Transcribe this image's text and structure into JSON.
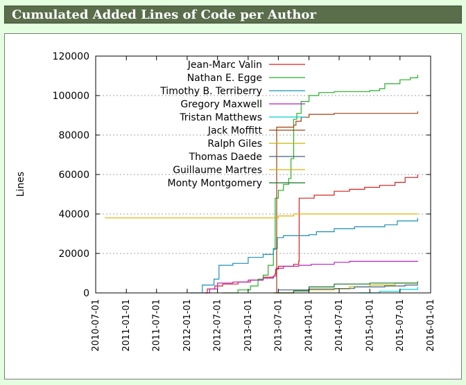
{
  "header": {
    "title": "Cumulated Added Lines of Code per Author"
  },
  "chart_data": {
    "type": "line",
    "title": "",
    "xlabel": "",
    "ylabel": "Lines",
    "xlim": [
      "2010-07-01",
      "2016-01-01"
    ],
    "ylim": [
      0,
      120000
    ],
    "xticks": [
      "2010-07-01",
      "2011-01-01",
      "2011-07-01",
      "2012-01-01",
      "2012-07-01",
      "2013-01-01",
      "2013-07-01",
      "2014-01-01",
      "2014-07-01",
      "2015-01-01",
      "2015-07-01",
      "2016-01-01"
    ],
    "yticks": [
      "0",
      "20000",
      "40000",
      "60000",
      "80000",
      "100000",
      "120000"
    ],
    "grid": true,
    "legend_position": "top-left",
    "series": [
      {
        "name": "Jean-Marc Valin",
        "color": "#d62020",
        "points": [
          [
            "2012-04-10",
            0
          ],
          [
            "2012-05-01",
            2000
          ],
          [
            "2012-06-15",
            3500
          ],
          [
            "2012-08-01",
            4500
          ],
          [
            "2012-11-01",
            5500
          ],
          [
            "2013-01-15",
            6500
          ],
          [
            "2013-04-01",
            8000
          ],
          [
            "2013-06-01",
            8500
          ],
          [
            "2013-06-10",
            9500
          ],
          [
            "2013-06-15",
            12000
          ],
          [
            "2013-07-01",
            13500
          ],
          [
            "2013-10-01",
            14500
          ],
          [
            "2013-10-31",
            16000
          ],
          [
            "2013-11-03",
            48000
          ],
          [
            "2014-02-01",
            49500
          ],
          [
            "2014-06-01",
            51500
          ],
          [
            "2014-09-01",
            52500
          ],
          [
            "2014-12-01",
            53500
          ],
          [
            "2015-03-01",
            54500
          ],
          [
            "2015-06-01",
            56000
          ],
          [
            "2015-08-01",
            58500
          ],
          [
            "2015-10-15",
            60000
          ]
        ]
      },
      {
        "name": "Nathan E. Egge",
        "color": "#22b022",
        "points": [
          [
            "2012-08-01",
            0
          ],
          [
            "2012-11-01",
            1500
          ],
          [
            "2013-01-15",
            3500
          ],
          [
            "2013-03-01",
            7000
          ],
          [
            "2013-04-01",
            9000
          ],
          [
            "2013-05-01",
            14000
          ],
          [
            "2013-06-01",
            22000
          ],
          [
            "2013-06-12",
            48000
          ],
          [
            "2013-07-01",
            52000
          ],
          [
            "2013-08-01",
            55000
          ],
          [
            "2013-09-01",
            58000
          ],
          [
            "2013-09-15",
            68000
          ],
          [
            "2013-10-01",
            88000
          ],
          [
            "2013-10-20",
            91000
          ],
          [
            "2013-11-15",
            97000
          ],
          [
            "2014-01-01",
            100000
          ],
          [
            "2014-03-01",
            101500
          ],
          [
            "2014-06-01",
            102000
          ],
          [
            "2015-01-01",
            102500
          ],
          [
            "2015-03-01",
            103500
          ],
          [
            "2015-04-01",
            106000
          ],
          [
            "2015-07-01",
            108000
          ],
          [
            "2015-09-01",
            109000
          ],
          [
            "2015-10-15",
            110500
          ]
        ]
      },
      {
        "name": "Timothy B. Terriberry",
        "color": "#1a8fb8",
        "points": [
          [
            "2012-01-15",
            0
          ],
          [
            "2012-04-01",
            4000
          ],
          [
            "2012-06-10",
            7000
          ],
          [
            "2012-07-10",
            14000
          ],
          [
            "2012-10-01",
            15000
          ],
          [
            "2013-01-01",
            18000
          ],
          [
            "2013-04-01",
            19500
          ],
          [
            "2013-06-01",
            22500
          ],
          [
            "2013-06-25",
            28000
          ],
          [
            "2013-08-01",
            29000
          ],
          [
            "2014-01-01",
            29500
          ],
          [
            "2014-02-15",
            31000
          ],
          [
            "2014-06-01",
            32500
          ],
          [
            "2014-10-01",
            33500
          ],
          [
            "2015-04-01",
            34500
          ],
          [
            "2015-06-15",
            36500
          ],
          [
            "2015-10-15",
            38000
          ]
        ]
      },
      {
        "name": "Gregory Maxwell",
        "color": "#b020c0",
        "points": [
          [
            "2012-04-15",
            0
          ],
          [
            "2012-05-15",
            2000
          ],
          [
            "2012-07-01",
            5000
          ],
          [
            "2012-10-01",
            5500
          ],
          [
            "2013-01-01",
            6500
          ],
          [
            "2013-04-01",
            7500
          ],
          [
            "2013-06-01",
            8500
          ],
          [
            "2013-06-20",
            12500
          ],
          [
            "2013-08-01",
            13500
          ],
          [
            "2013-11-01",
            14000
          ],
          [
            "2014-01-15",
            14500
          ],
          [
            "2014-06-01",
            15500
          ],
          [
            "2014-09-01",
            16000
          ],
          [
            "2015-10-15",
            16200
          ]
        ]
      },
      {
        "name": "Tristan Matthews",
        "color": "#00d0d0",
        "points": [
          [
            "2014-11-01",
            0
          ],
          [
            "2015-03-01",
            800
          ],
          [
            "2015-07-01",
            1800
          ],
          [
            "2015-10-15",
            3000
          ]
        ]
      },
      {
        "name": "Jack Moffitt",
        "color": "#a04010",
        "points": [
          [
            "2013-06-20",
            0
          ],
          [
            "2013-06-21",
            84000
          ],
          [
            "2013-10-01",
            85000
          ],
          [
            "2013-10-15",
            87000
          ],
          [
            "2013-11-15",
            89000
          ],
          [
            "2014-01-01",
            90500
          ],
          [
            "2014-06-01",
            91000
          ],
          [
            "2015-10-15",
            92000
          ]
        ]
      },
      {
        "name": "Ralph Giles",
        "color": "#c8b400",
        "points": [
          [
            "2013-07-01",
            0
          ],
          [
            "2013-10-01",
            1000
          ],
          [
            "2014-01-01",
            1500
          ],
          [
            "2014-06-01",
            2000
          ],
          [
            "2014-09-01",
            3000
          ],
          [
            "2015-01-01",
            4000
          ],
          [
            "2015-06-01",
            5000
          ],
          [
            "2015-10-15",
            5500
          ]
        ]
      },
      {
        "name": "Thomas Daede",
        "color": "#406080",
        "points": [
          [
            "2013-07-01",
            1500
          ],
          [
            "2014-01-01",
            2000
          ],
          [
            "2014-06-01",
            2200
          ],
          [
            "2014-10-01",
            3000
          ],
          [
            "2015-04-01",
            3500
          ],
          [
            "2015-08-01",
            4000
          ],
          [
            "2015-10-15",
            4500
          ]
        ]
      },
      {
        "name": "Guillaume Martres",
        "color": "#e0b000",
        "points": [
          [
            "2010-08-25",
            38000
          ],
          [
            "2013-06-15",
            38000
          ],
          [
            "2013-07-01",
            39000
          ],
          [
            "2013-10-01",
            40000
          ],
          [
            "2015-10-15",
            40000
          ]
        ]
      },
      {
        "name": "Monty Montgomery",
        "color": "#107020",
        "points": [
          [
            "2013-06-01",
            0
          ],
          [
            "2013-10-01",
            1000
          ],
          [
            "2014-01-01",
            3000
          ],
          [
            "2014-06-01",
            4500
          ],
          [
            "2015-01-01",
            5000
          ],
          [
            "2015-10-15",
            5800
          ]
        ]
      }
    ]
  }
}
